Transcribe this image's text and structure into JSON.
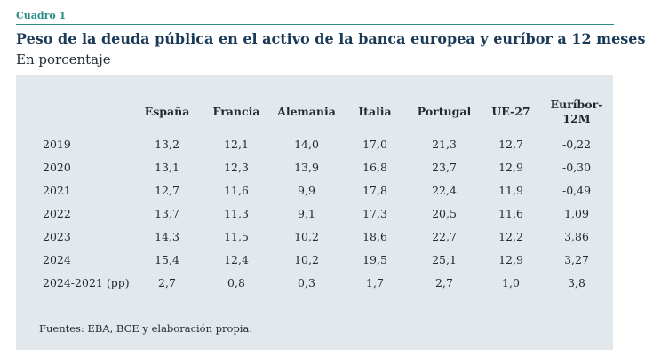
{
  "label": "Cuadro 1",
  "title": "Peso de la deuda pública en el activo de la banca europea y euríbor a 12 meses",
  "subtitle": "En porcentaje",
  "table": {
    "headers": [
      "España",
      "Francia",
      "Alemania",
      "Italia",
      "Portugal",
      "UE-27",
      "Euríbor-12M"
    ],
    "rows": [
      {
        "label": "2019",
        "values": [
          "13,2",
          "12,1",
          "14,0",
          "17,0",
          "21,3",
          "12,7",
          "-0,22"
        ]
      },
      {
        "label": "2020",
        "values": [
          "13,1",
          "12,3",
          "13,9",
          "16,8",
          "23,7",
          "12,9",
          "-0,30"
        ]
      },
      {
        "label": "2021",
        "values": [
          "12,7",
          "11,6",
          "9,9",
          "17,8",
          "22,4",
          "11,9",
          "-0,49"
        ]
      },
      {
        "label": "2022",
        "values": [
          "13,7",
          "11,3",
          "9,1",
          "17,3",
          "20,5",
          "11,6",
          "1,09"
        ]
      },
      {
        "label": "2023",
        "values": [
          "14,3",
          "11,5",
          "10,2",
          "18,6",
          "22,7",
          "12,2",
          "3,86"
        ]
      },
      {
        "label": "2024",
        "values": [
          "15,4",
          "12,4",
          "10,2",
          "19,5",
          "25,1",
          "12,9",
          "3,27"
        ]
      },
      {
        "label": "2024-2021 (pp)",
        "values": [
          "2,7",
          "0,8",
          "0,3",
          "1,7",
          "2,7",
          "1,0",
          "3,8"
        ]
      }
    ]
  },
  "source": "Fuentes: EBA, BCE y elaboración propia."
}
